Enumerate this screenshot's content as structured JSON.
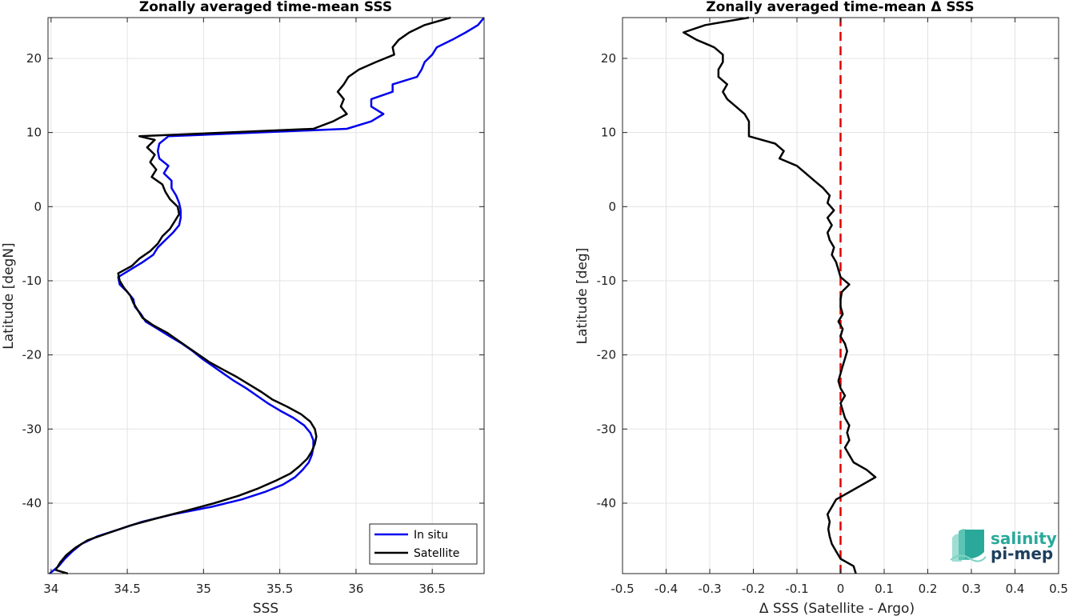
{
  "chart_data": [
    {
      "type": "line",
      "title": "Zonally averaged time-mean SSS",
      "xlabel": "SSS",
      "ylabel": "Latitude [degN]",
      "xlim": [
        33.98,
        36.84
      ],
      "ylim": [
        -49.5,
        25.5
      ],
      "xticks": [
        34,
        34.5,
        35,
        35.5,
        36,
        36.5
      ],
      "xtick_labels": [
        "34",
        "34.5",
        "35",
        "35.5",
        "36",
        "36.5"
      ],
      "yticks": [
        -40,
        -30,
        -20,
        -10,
        0,
        10,
        20
      ],
      "ytick_labels": [
        "-40",
        "-30",
        "-20",
        "-10",
        "0",
        "10",
        "20"
      ],
      "grid": true,
      "legend_position": "bottom-right",
      "series": [
        {
          "name": "In situ",
          "color": "#0000ee",
          "lat": [
            -49.5,
            -48.5,
            -47.5,
            -46.5,
            -45.5,
            -44.5,
            -43.5,
            -42.5,
            -41.5,
            -40.5,
            -39.5,
            -38.5,
            -37.5,
            -36.5,
            -35.5,
            -34.5,
            -33.5,
            -32.5,
            -31.5,
            -30.5,
            -29.5,
            -28.5,
            -27.5,
            -26.5,
            -25.5,
            -24.5,
            -23.5,
            -22.5,
            -21.5,
            -20.5,
            -19.5,
            -18.5,
            -17.5,
            -16.5,
            -15.5,
            -14.5,
            -13.5,
            -12.5,
            -11.5,
            -10.5,
            -9.5,
            -8.5,
            -7.5,
            -6.5,
            -5.5,
            -4.5,
            -3.5,
            -2.5,
            -1.5,
            -0.5,
            0.5,
            1.5,
            2.5,
            3.5,
            4.5,
            5.5,
            6.5,
            7.5,
            8.5,
            9.5,
            10.5,
            11.5,
            12.5,
            13.5,
            14.5,
            15.5,
            16.5,
            17.5,
            18.5,
            19.5,
            20.5,
            21.5,
            22.5,
            23.5,
            24.5,
            25.5
          ],
          "values": [
            33.99,
            34.05,
            34.09,
            34.14,
            34.2,
            34.3,
            34.45,
            34.6,
            34.8,
            35.05,
            35.25,
            35.4,
            35.52,
            35.6,
            35.65,
            35.69,
            35.71,
            35.72,
            35.72,
            35.7,
            35.66,
            35.59,
            35.5,
            35.42,
            35.35,
            35.28,
            35.2,
            35.13,
            35.06,
            34.99,
            34.93,
            34.86,
            34.78,
            34.7,
            34.62,
            34.59,
            34.55,
            34.54,
            34.5,
            34.45,
            34.44,
            34.52,
            34.6,
            34.67,
            34.7,
            34.75,
            34.8,
            34.84,
            34.85,
            34.85,
            34.84,
            34.82,
            34.79,
            34.79,
            34.74,
            34.77,
            34.71,
            34.7,
            34.71,
            34.77,
            35.94,
            36.1,
            36.18,
            36.1,
            36.1,
            36.24,
            36.24,
            36.4,
            36.43,
            36.45,
            36.5,
            36.53,
            36.63,
            36.72,
            36.8,
            36.84
          ]
        },
        {
          "name": "Satellite",
          "color": "#000000",
          "lat": [
            -49.5,
            -49.0,
            -48.0,
            -47.0,
            -46.0,
            -45.0,
            -44.0,
            -43.0,
            -42.0,
            -41.0,
            -40.0,
            -39.0,
            -38.0,
            -37.0,
            -36.0,
            -35.0,
            -34.0,
            -33.0,
            -32.0,
            -31.0,
            -30.0,
            -29.0,
            -28.0,
            -27.0,
            -26.0,
            -25.0,
            -24.0,
            -23.0,
            -22.0,
            -21.0,
            -20.0,
            -19.0,
            -18.0,
            -17.0,
            -16.0,
            -15.0,
            -14.0,
            -13.0,
            -12.0,
            -11.0,
            -10.0,
            -9.0,
            -8.0,
            -7.0,
            -6.0,
            -5.0,
            -4.0,
            -3.0,
            -2.0,
            -1.0,
            0.0,
            1.0,
            2.0,
            3.0,
            4.0,
            5.0,
            6.0,
            7.0,
            8.0,
            9.0,
            9.5,
            10.5,
            11.5,
            12.5,
            13.5,
            14.5,
            15.5,
            16.5,
            17.5,
            18.5,
            19.5,
            20.5,
            21.5,
            22.5,
            23.5,
            24.5,
            25.5
          ],
          "values": [
            34.11,
            34.03,
            34.06,
            34.1,
            34.16,
            34.24,
            34.38,
            34.52,
            34.7,
            34.89,
            35.07,
            35.23,
            35.36,
            35.47,
            35.57,
            35.63,
            35.68,
            35.71,
            35.73,
            35.74,
            35.73,
            35.7,
            35.64,
            35.55,
            35.45,
            35.38,
            35.3,
            35.22,
            35.13,
            35.04,
            34.97,
            34.9,
            34.83,
            34.76,
            34.67,
            34.6,
            34.57,
            34.54,
            34.52,
            34.48,
            34.45,
            34.44,
            34.53,
            34.58,
            34.65,
            34.7,
            34.73,
            34.78,
            34.81,
            34.84,
            34.83,
            34.78,
            34.75,
            34.73,
            34.66,
            34.69,
            34.65,
            34.68,
            34.63,
            34.68,
            34.58,
            35.72,
            35.85,
            35.94,
            35.9,
            35.92,
            35.88,
            35.92,
            35.95,
            36.02,
            36.13,
            36.25,
            36.24,
            36.28,
            36.35,
            36.45,
            36.62
          ]
        }
      ]
    },
    {
      "type": "line",
      "title": "Zonally averaged time-mean Δ SSS",
      "xlabel": "Δ SSS (Satellite - Argo)",
      "ylabel": "Latitude [deg]",
      "xlim": [
        -0.5,
        0.5
      ],
      "ylim": [
        -49.5,
        25.5
      ],
      "xticks": [
        -0.5,
        -0.4,
        -0.3,
        -0.2,
        -0.1,
        0,
        0.1,
        0.2,
        0.3,
        0.4,
        0.5
      ],
      "xtick_labels": [
        "-0.5",
        "-0.4",
        "-0.3",
        "-0.2",
        "-0.1",
        "0",
        "0.1",
        "0.2",
        "0.3",
        "0.4",
        "0.5"
      ],
      "yticks": [
        -40,
        -30,
        -20,
        -10,
        0,
        10,
        20
      ],
      "ytick_labels": [
        "-40",
        "-30",
        "-20",
        "-10",
        "0",
        "10",
        "20"
      ],
      "grid": true,
      "reference_line": {
        "x": 0,
        "color": "#e00000",
        "style": "dashed"
      },
      "series": [
        {
          "color": "#000000",
          "lat": [
            -49.5,
            -48.5,
            -47.5,
            -46.5,
            -45.5,
            -44.5,
            -43.5,
            -42.5,
            -41.5,
            -40.5,
            -39.5,
            -38.5,
            -37.5,
            -36.5,
            -35.5,
            -34.5,
            -33.5,
            -32.5,
            -31.5,
            -30.5,
            -29.5,
            -28.5,
            -27.5,
            -26.5,
            -25.5,
            -24.5,
            -23.5,
            -22.5,
            -21.5,
            -20.5,
            -19.5,
            -18.5,
            -17.5,
            -16.5,
            -15.5,
            -14.5,
            -13.5,
            -12.5,
            -11.5,
            -10.5,
            -9.5,
            -8.5,
            -7.5,
            -6.5,
            -5.5,
            -4.5,
            -3.5,
            -2.5,
            -1.5,
            -0.5,
            0.5,
            1.5,
            2.5,
            3.5,
            4.5,
            5.5,
            6.5,
            7.5,
            8.5,
            9.5,
            10.5,
            11.5,
            12.5,
            13.5,
            14.5,
            15.5,
            16.5,
            17.5,
            18.5,
            19.5,
            20.5,
            21.5,
            22.5,
            23.5,
            24.5,
            25.5
          ],
          "values": [
            0.035,
            0.03,
            0.0,
            -0.01,
            -0.02,
            -0.025,
            -0.028,
            -0.025,
            -0.03,
            -0.02,
            -0.01,
            0.02,
            0.05,
            0.08,
            0.06,
            0.03,
            0.02,
            0.01,
            0.02,
            0.015,
            0.02,
            0.01,
            0.005,
            0.0,
            0.01,
            0.0,
            -0.005,
            0.0,
            0.005,
            0.01,
            0.015,
            0.01,
            0.0,
            0.005,
            -0.005,
            0.005,
            0.0,
            0.0,
            0.003,
            0.02,
            0.0,
            -0.005,
            -0.01,
            -0.02,
            -0.015,
            -0.025,
            -0.03,
            -0.02,
            -0.03,
            -0.015,
            -0.03,
            -0.025,
            -0.04,
            -0.06,
            -0.08,
            -0.1,
            -0.14,
            -0.13,
            -0.15,
            -0.21,
            -0.21,
            -0.21,
            -0.22,
            -0.24,
            -0.26,
            -0.27,
            -0.26,
            -0.28,
            -0.28,
            -0.27,
            -0.27,
            -0.29,
            -0.33,
            -0.36,
            -0.31,
            -0.21
          ]
        }
      ]
    }
  ],
  "logo": {
    "line1": "salinity",
    "line2": "pi-mep"
  }
}
